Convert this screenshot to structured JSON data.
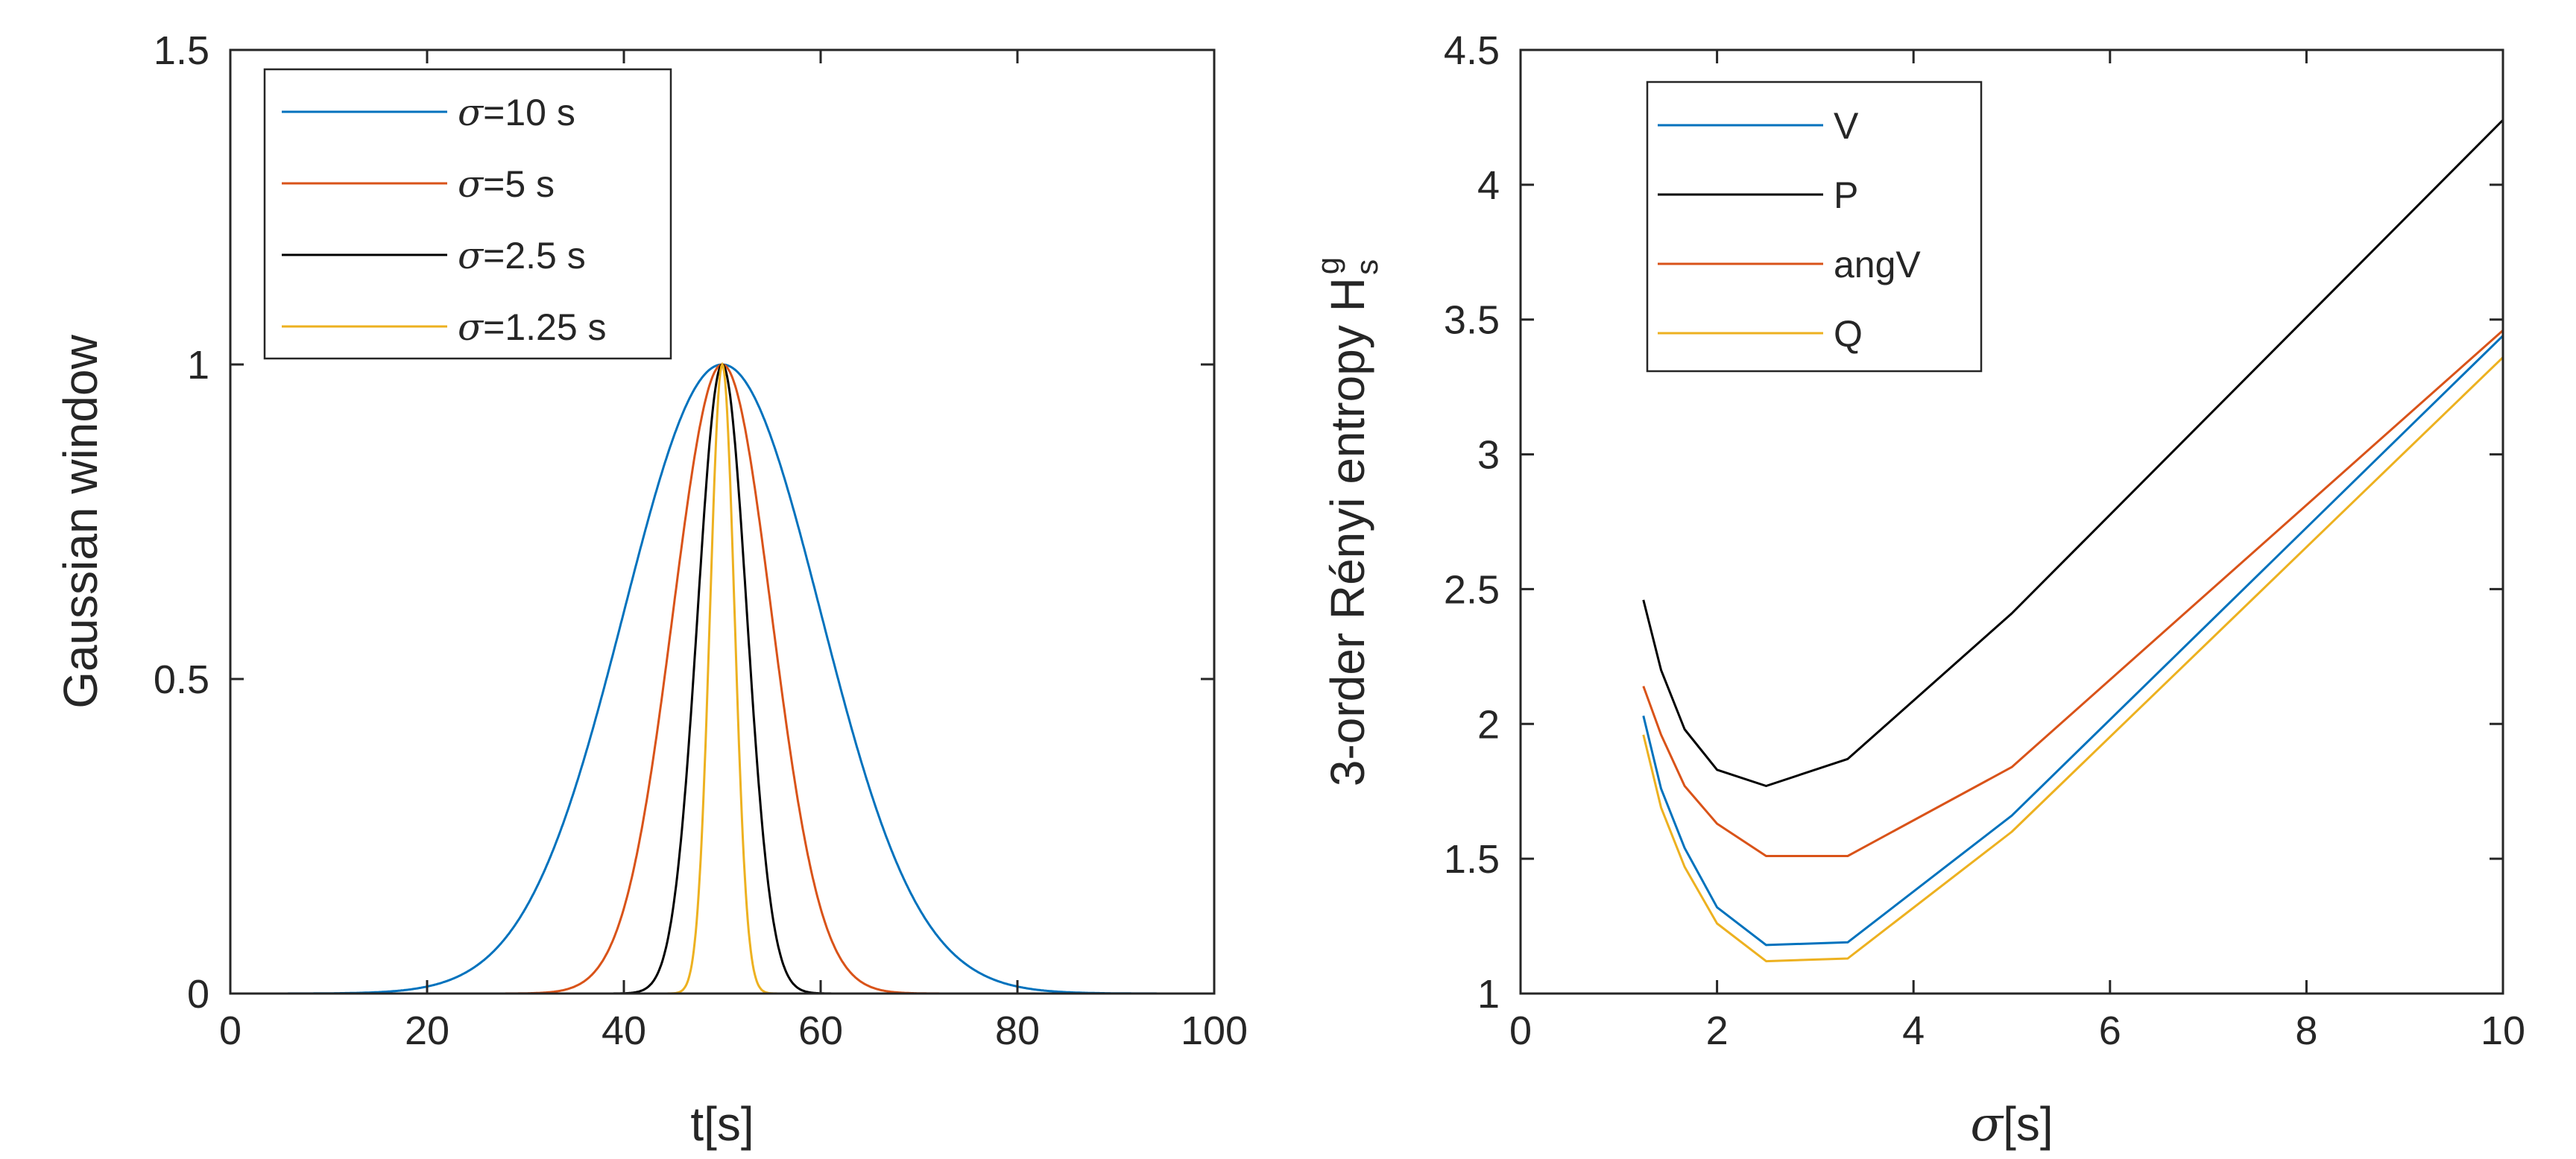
{
  "chart_data": [
    {
      "type": "line",
      "title": "",
      "xlabel": "t[s]",
      "ylabel": "Gaussian window",
      "xlim": [
        0,
        100
      ],
      "ylim": [
        0,
        1.5
      ],
      "xticks": [
        "0",
        "20",
        "40",
        "60",
        "80",
        "100"
      ],
      "yticks": [
        "0",
        "0.5",
        "1",
        "1.5"
      ],
      "grid": false,
      "legend_location": "top-left",
      "center": 50,
      "series": [
        {
          "name_prefix": "σ",
          "name_suffix": "=10 s",
          "sigma": 10,
          "color": "#0072BD"
        },
        {
          "name_prefix": "σ",
          "name_suffix": "=5 s",
          "sigma": 5,
          "color": "#D95319"
        },
        {
          "name_prefix": "σ",
          "name_suffix": "=2.5 s",
          "sigma": 2.5,
          "color": "#000000"
        },
        {
          "name_prefix": "σ",
          "name_suffix": "=1.25 s",
          "sigma": 1.25,
          "color": "#EDB120"
        }
      ]
    },
    {
      "type": "line",
      "title": "",
      "xlabel_prefix": "σ",
      "xlabel_suffix": "[s]",
      "ylabel_main": "3-order Rényi entropy H",
      "ylabel_sub": "s",
      "ylabel_sup": "g",
      "xlim": [
        0,
        10
      ],
      "ylim": [
        1,
        4.5
      ],
      "xticks": [
        "0",
        "2",
        "4",
        "6",
        "8",
        "10"
      ],
      "yticks": [
        "1",
        "1.5",
        "2",
        "2.5",
        "3",
        "3.5",
        "4",
        "4.5"
      ],
      "grid": false,
      "legend_location": "top-left",
      "x": [
        1.25,
        1.43,
        1.67,
        2.0,
        2.5,
        3.33,
        5.0,
        10.0
      ],
      "series": [
        {
          "name": "V",
          "color": "#0072BD",
          "values": [
            2.03,
            1.76,
            1.54,
            1.32,
            1.18,
            1.19,
            1.66,
            3.44
          ]
        },
        {
          "name": "P",
          "color": "#000000",
          "values": [
            2.46,
            2.2,
            1.98,
            1.83,
            1.77,
            1.87,
            2.41,
            4.24
          ]
        },
        {
          "name": "angV",
          "color": "#D95319",
          "values": [
            2.14,
            1.96,
            1.77,
            1.63,
            1.51,
            1.51,
            1.84,
            3.46
          ]
        },
        {
          "name": "Q",
          "color": "#EDB120",
          "values": [
            1.96,
            1.69,
            1.47,
            1.26,
            1.12,
            1.13,
            1.6,
            3.36
          ]
        }
      ]
    }
  ]
}
